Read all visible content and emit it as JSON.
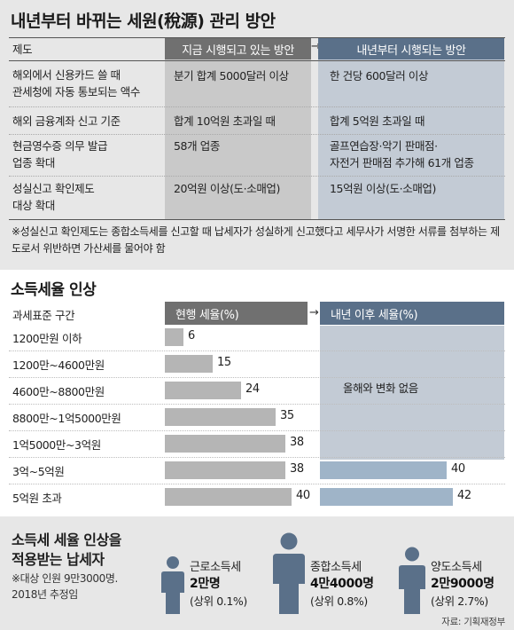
{
  "section1": {
    "title": "내년부터 바뀌는 세원(稅源) 관리 방안",
    "col_header_system": "제도",
    "col_header_current": "지금 시행되고 있는 방안",
    "col_header_next": "내년부터 시행되는 방안",
    "arrow": "→",
    "rows": [
      {
        "system": [
          "해외에서 신용카드 쓸 때",
          "관세청에 자동 통보되는 액수"
        ],
        "current": [
          "분기 합계 5000달러 이상"
        ],
        "next": [
          "한 건당 600달러 이상"
        ]
      },
      {
        "system": [
          "해외 금융계좌 신고 기준"
        ],
        "current": [
          "합계 10억원 초과일 때"
        ],
        "next": [
          "합계 5억원 초과일 때"
        ]
      },
      {
        "system": [
          "현금영수증 의무 발급",
          "업종 확대"
        ],
        "current": [
          "58개 업종"
        ],
        "next": [
          "골프연습장·악기 판매점·",
          "자전거 판매점 추가해 61개 업종"
        ]
      },
      {
        "system": [
          "성실신고 확인제도",
          "대상 확대"
        ],
        "current": [
          "20억원 이상(도·소매업)"
        ],
        "next": [
          "15억원 이상(도·소매업)"
        ]
      }
    ],
    "note": "※성실신고 확인제도는 종합소득세를 신고할 때 납세자가 성실하게 신고했다고 세무사가 서명한 서류를 첨부하는 제도로서 위반하면 가산세를 물어야 함"
  },
  "chart_data": {
    "type": "bar",
    "title": "소득세율 인상",
    "xlabel": "",
    "ylabel": "과세표준 구간",
    "categories": [
      "1200만원 이하",
      "1200만~4600만원",
      "4600만~8800만원",
      "8800만~1억5000만원",
      "1억5000만~3억원",
      "3억~5억원",
      "5억원 초과"
    ],
    "series": [
      {
        "name": "현행 세율(%)",
        "values": [
          6,
          15,
          24,
          35,
          38,
          38,
          40
        ],
        "color": "#b5b5b5"
      },
      {
        "name": "내년 이후 세율(%)",
        "values": [
          null,
          null,
          null,
          null,
          null,
          40,
          42
        ],
        "color": "#9fb4c8"
      }
    ],
    "xlim": [
      0,
      42
    ],
    "header_color_current": "#707070",
    "header_color_next": "#5a7089",
    "arrow": "→",
    "unchanged_note": "올해와 변화 없음",
    "grid": false
  },
  "section3": {
    "title_line1": "소득세 세율 인상을",
    "title_line2": "적용받는 납세자",
    "note_line1": "※대상 인원 9만3000명.",
    "note_line2": "2018년 추정임",
    "groups": [
      {
        "name": "근로소득세",
        "count": "2만명",
        "rank": "(상위 0.1%)"
      },
      {
        "name": "종합소득세",
        "count": "4만4000명",
        "rank": "(상위 0.8%)"
      },
      {
        "name": "양도소득세",
        "count": "2만9000명",
        "rank": "(상위 2.7%)"
      }
    ],
    "person_color": "#5a7089",
    "source": "자료: 기획재정부"
  }
}
